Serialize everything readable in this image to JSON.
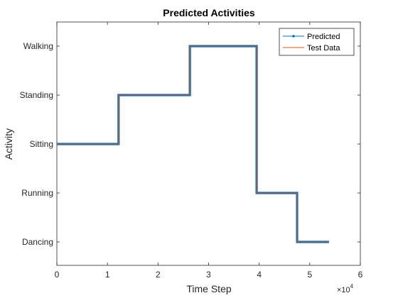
{
  "chart_data": {
    "type": "line",
    "title": "Predicted Activities",
    "xlabel": "Time Step",
    "ylabel": "Activity",
    "x_exponent_label": "×10",
    "x_exponent": "4",
    "xlim": [
      0,
      60000
    ],
    "x_ticks": [
      0,
      10000,
      20000,
      30000,
      40000,
      50000,
      60000
    ],
    "x_tick_labels": [
      "0",
      "1",
      "2",
      "3",
      "4",
      "5",
      "6"
    ],
    "y_categories": [
      "Dancing",
      "Running",
      "Sitting",
      "Standing",
      "Walking"
    ],
    "legend_position": "top-right",
    "grid": false,
    "series": [
      {
        "name": "Predicted",
        "color": "#0072BD",
        "marker": "dot",
        "segments": [
          {
            "x_start": 0,
            "x_end": 12200,
            "y": "Sitting"
          },
          {
            "x_start": 12200,
            "x_end": 26300,
            "y": "Standing"
          },
          {
            "x_start": 26300,
            "x_end": 39500,
            "y": "Walking"
          },
          {
            "x_start": 39500,
            "x_end": 47500,
            "y": "Running"
          },
          {
            "x_start": 47500,
            "x_end": 53800,
            "y": "Dancing"
          }
        ]
      },
      {
        "name": "Test Data",
        "color": "#D95319",
        "marker": "none",
        "segments": [
          {
            "x_start": 0,
            "x_end": 12200,
            "y": "Sitting"
          },
          {
            "x_start": 12200,
            "x_end": 26300,
            "y": "Standing"
          },
          {
            "x_start": 26300,
            "x_end": 39500,
            "y": "Walking"
          },
          {
            "x_start": 39500,
            "x_end": 47500,
            "y": "Running"
          },
          {
            "x_start": 47500,
            "x_end": 53800,
            "y": "Dancing"
          }
        ]
      }
    ]
  }
}
